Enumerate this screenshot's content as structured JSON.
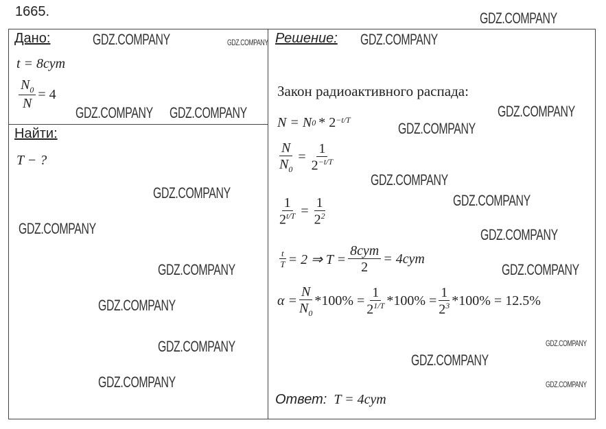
{
  "problem_number": "1665.",
  "given": {
    "heading": "Дано:",
    "t": "t = 8сут",
    "ratio_num": "N",
    "ratio_num_sub": "0",
    "ratio_den": "N",
    "ratio_val": "= 4"
  },
  "find": {
    "heading": "Найти:",
    "item": "T − ?"
  },
  "solution": {
    "heading": "Решение:",
    "law": "Закон радиоактивного распада:",
    "eq1": {
      "lhs": "N = N",
      "sub": "0",
      "rest": "* 2",
      "exp": "−t/T"
    },
    "eq2": {
      "num": "N",
      "den": "N",
      "den_sub": "0",
      "rhs_num": "1",
      "rhs_den": "2",
      "rhs_exp": "−t/T"
    },
    "eq3": {
      "lhs_num": "1",
      "lhs_den": "2",
      "lhs_exp": "t/T",
      "rhs_num": "1",
      "rhs_den": "2",
      "rhs_exp": "2"
    },
    "eq4": {
      "frac_num": "t",
      "frac_den": "T",
      "mid": "= 2 ⇒ T =",
      "num": "8сут",
      "den": "2",
      "result": "= 4сут"
    },
    "eq5": {
      "alpha": "α =",
      "f1_num": "N",
      "f1_den": "N",
      "f1_sub": "0",
      "pct": "*100% =",
      "f2_num": "1",
      "f2_den": "2",
      "f2_exp": "1/T",
      "f3_num": "1",
      "f3_den": "2",
      "f3_exp": "3",
      "result": "*100% = 12.5%"
    },
    "answer_label": "Ответ:",
    "answer": "T = 4сут"
  },
  "watermark": "GDZ.COMPANY"
}
